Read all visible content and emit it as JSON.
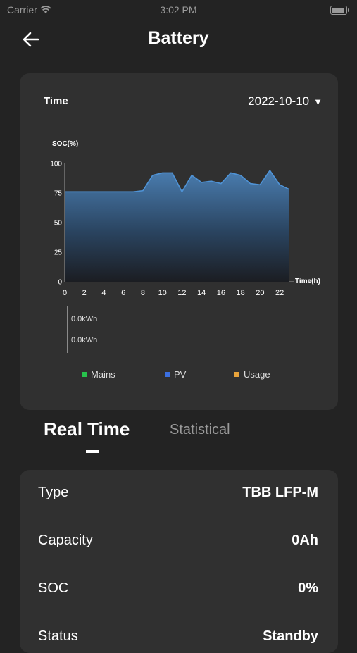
{
  "status_bar": {
    "carrier": "Carrier",
    "time": "3:02 PM"
  },
  "nav": {
    "title": "Battery",
    "back_icon": "arrow-left-icon"
  },
  "chart_card": {
    "time_label": "Time",
    "date": "2022-10-10",
    "energy_values": [
      "0.0kWh",
      "0.0kWh"
    ],
    "legend": [
      {
        "label": "Mains",
        "color": "#27c24c"
      },
      {
        "label": "PV",
        "color": "#3b6fe0"
      },
      {
        "label": "Usage",
        "color": "#e8a33b"
      }
    ]
  },
  "chart_data": {
    "type": "area",
    "ylabel": "SOC(%)",
    "xlabel": "Time(h)",
    "ylim": [
      0,
      100
    ],
    "xlim": [
      0,
      23
    ],
    "y_ticks": [
      0,
      25,
      50,
      75,
      100
    ],
    "x_ticks": [
      0,
      2,
      4,
      6,
      8,
      10,
      12,
      14,
      16,
      18,
      20,
      22
    ],
    "line_color": "#4f93d6",
    "series": [
      {
        "x": [
          0,
          1,
          2,
          3,
          4,
          5,
          6,
          7,
          8,
          9,
          10,
          11,
          12,
          13,
          14,
          15,
          16,
          17,
          18,
          19,
          20,
          21,
          22,
          23
        ],
        "values": [
          76,
          76,
          76,
          76,
          76,
          76,
          76,
          76,
          77,
          90,
          92,
          92,
          76,
          90,
          84,
          85,
          83,
          92,
          90,
          83,
          82,
          94,
          82,
          78
        ]
      }
    ]
  },
  "tabs": {
    "active": "Real Time",
    "inactive": "Statistical"
  },
  "info": [
    {
      "key": "Type",
      "value": "TBB LFP-M"
    },
    {
      "key": "Capacity",
      "value": "0Ah"
    },
    {
      "key": "SOC",
      "value": "0%"
    },
    {
      "key": "Status",
      "value": "Standby"
    }
  ]
}
